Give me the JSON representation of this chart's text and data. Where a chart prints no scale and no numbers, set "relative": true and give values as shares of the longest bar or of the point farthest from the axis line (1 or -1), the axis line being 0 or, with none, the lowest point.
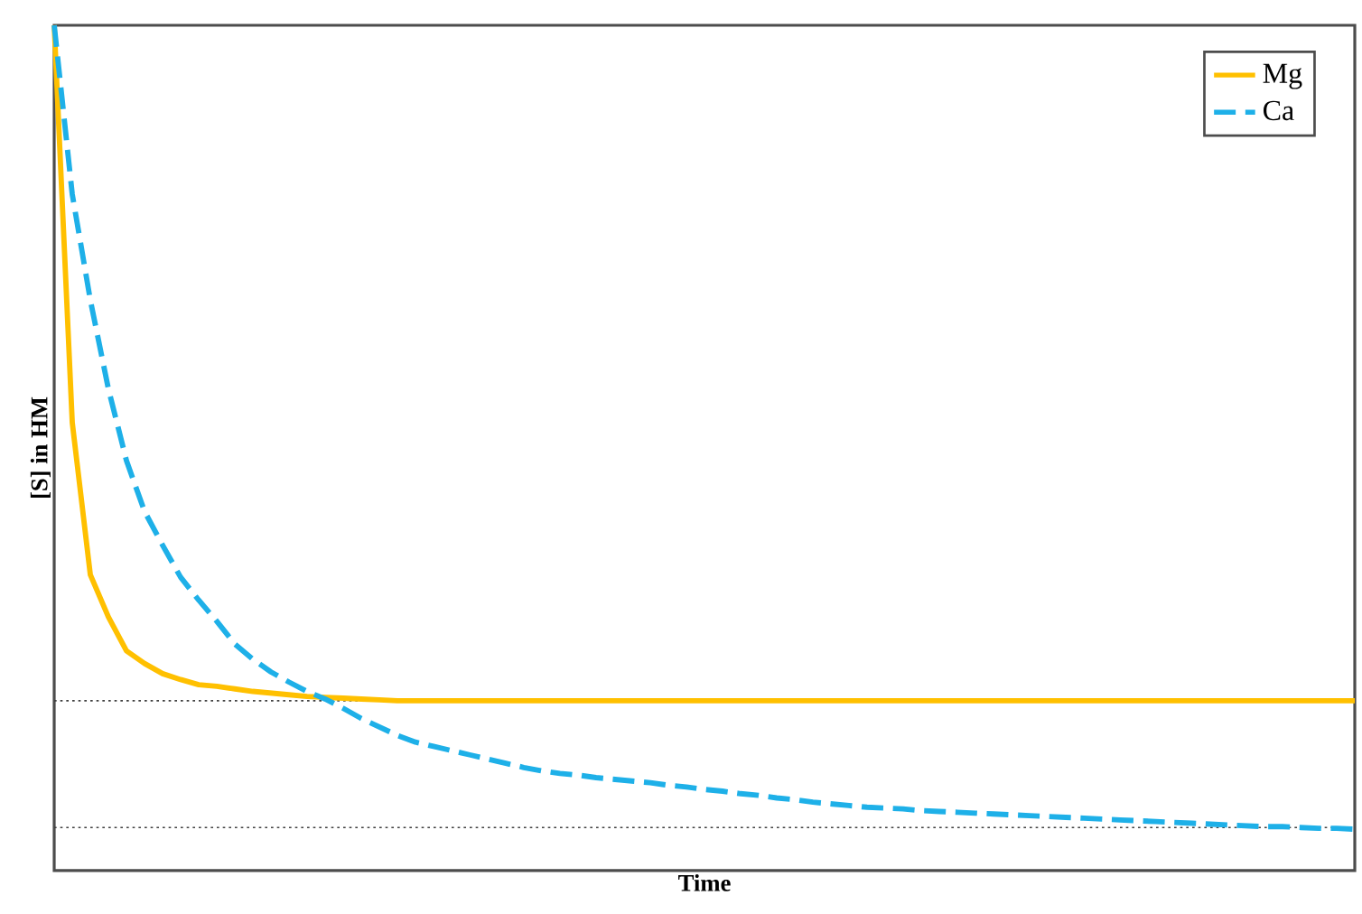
{
  "chart_data": {
    "type": "line",
    "xlabel": "Time",
    "ylabel": "[S] in HM",
    "relative": true,
    "legend": "top right",
    "categories": [
      null,
      null,
      null,
      null,
      null,
      null,
      null,
      null,
      null,
      null,
      null,
      null,
      null,
      null,
      null,
      null,
      null,
      null,
      null,
      null,
      null,
      null,
      null,
      null,
      null,
      null,
      null,
      null,
      null,
      null,
      null,
      null,
      null,
      null,
      null,
      null,
      null,
      null,
      null,
      null,
      null,
      null,
      null,
      null,
      null,
      null,
      null,
      null,
      null,
      null,
      null,
      null,
      null,
      null,
      null,
      null,
      null,
      null,
      null,
      null,
      null,
      null,
      null,
      null,
      null,
      null,
      null,
      null,
      null,
      null,
      null,
      null,
      null
    ],
    "series": [
      {
        "name": "Mg",
        "color": "#ffc000",
        "line_style": "solid",
        "values": [
          1.0,
          0.53,
          0.35,
          0.3,
          0.26,
          0.245,
          0.233,
          0.226,
          0.22,
          0.218,
          0.215,
          0.212,
          0.21,
          0.208,
          0.206,
          0.205,
          0.204,
          0.203,
          0.202,
          0.201,
          0.201,
          0.201,
          0.201,
          0.201,
          0.201,
          0.201,
          0.201,
          0.201,
          0.201,
          0.201,
          0.201,
          0.201,
          0.201,
          0.201,
          0.201,
          0.201,
          0.201,
          0.201,
          0.201,
          0.201,
          0.201,
          0.201,
          0.201,
          0.201,
          0.201,
          0.201,
          0.201,
          0.201,
          0.201,
          0.201,
          0.201,
          0.201,
          0.201,
          0.201,
          0.201,
          0.201,
          0.201,
          0.201,
          0.201,
          0.201,
          0.201,
          0.201,
          0.201,
          0.201,
          0.201,
          0.201,
          0.201,
          0.201,
          0.201,
          0.201,
          0.201,
          0.201,
          0.201
        ]
      },
      {
        "name": "Ca",
        "color": "#1eb0e8",
        "line_style": "dashed",
        "values": [
          1.0,
          0.8,
          0.675,
          0.57,
          0.485,
          0.425,
          0.385,
          0.347,
          0.32,
          0.295,
          0.268,
          0.25,
          0.235,
          0.223,
          0.212,
          0.203,
          0.192,
          0.18,
          0.17,
          0.16,
          0.152,
          0.147,
          0.142,
          0.137,
          0.132,
          0.127,
          0.122,
          0.118,
          0.115,
          0.113,
          0.11,
          0.108,
          0.106,
          0.104,
          0.101,
          0.099,
          0.096,
          0.094,
          0.091,
          0.089,
          0.086,
          0.084,
          0.081,
          0.079,
          0.077,
          0.075,
          0.074,
          0.073,
          0.071,
          0.07,
          0.069,
          0.068,
          0.067,
          0.066,
          0.065,
          0.064,
          0.063,
          0.062,
          0.061,
          0.06,
          0.059,
          0.058,
          0.057,
          0.056,
          0.055,
          0.054,
          0.053,
          0.052,
          0.052,
          0.051,
          0.05,
          0.05,
          0.049
        ]
      }
    ],
    "ref_lines": [
      {
        "axis": "y",
        "value": 0.201,
        "color": "#404040",
        "line_style": "dotted"
      },
      {
        "axis": "y",
        "value": 0.051,
        "color": "#404040",
        "line_style": "dotted"
      }
    ]
  }
}
